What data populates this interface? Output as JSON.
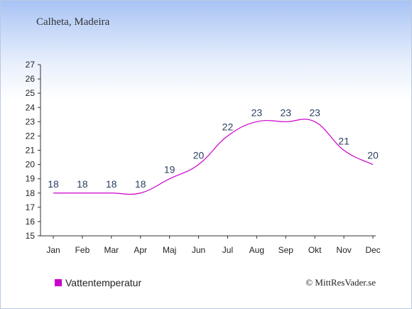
{
  "title": "Calheta, Madeira",
  "credit": "© MittResVader.se",
  "legend": {
    "label": "Vattentemperatur",
    "color": "#cc00cc"
  },
  "chart_data": {
    "type": "line",
    "categories": [
      "Jan",
      "Feb",
      "Mar",
      "Apr",
      "Maj",
      "Jun",
      "Jul",
      "Aug",
      "Sep",
      "Okt",
      "Nov",
      "Dec"
    ],
    "series": [
      {
        "name": "Vattentemperatur",
        "values": [
          18,
          18,
          18,
          18,
          19,
          20,
          22,
          23,
          23,
          23,
          21,
          20
        ],
        "color": "#cc00cc"
      }
    ],
    "ylim": [
      15,
      27
    ],
    "yticks": [
      15,
      16,
      17,
      18,
      19,
      20,
      21,
      22,
      23,
      24,
      25,
      26,
      27
    ],
    "grid": false,
    "legend_position": "bottom-left"
  }
}
